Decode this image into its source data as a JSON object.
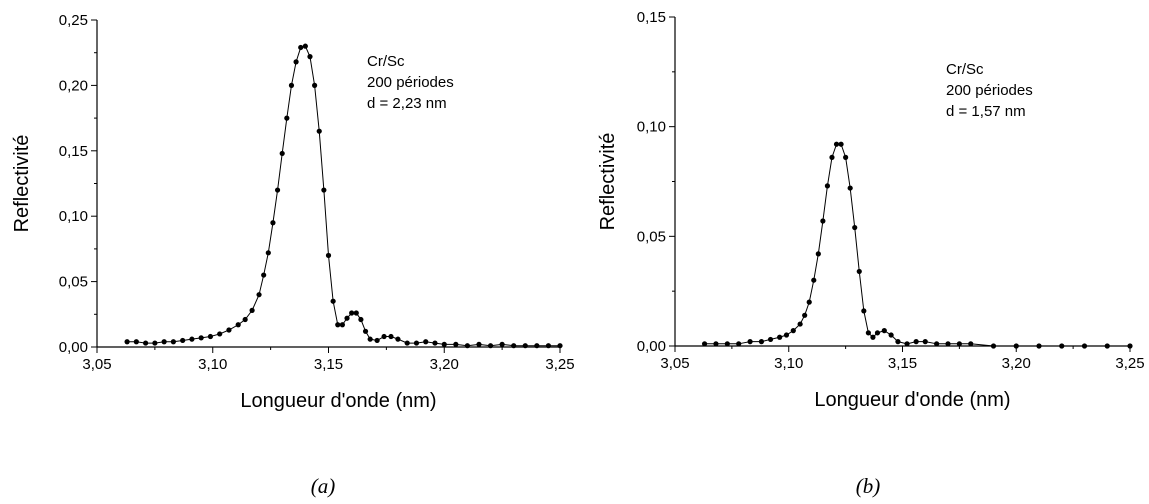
{
  "chart_data": [
    {
      "type": "scatter",
      "panel_label": "(a)",
      "xlabel": "Longueur d'onde (nm)",
      "ylabel": "Reflectivité",
      "xlim": [
        3.05,
        3.25
      ],
      "ylim": [
        0.0,
        0.25
      ],
      "xticks": [
        "3,05",
        "3,10",
        "3,15",
        "3,20",
        "3,25"
      ],
      "yticks": [
        "0,00",
        "0,05",
        "0,10",
        "0,15",
        "0,20",
        "0,25"
      ],
      "annotation": [
        "Cr/Sc",
        "200 périodes",
        "d = 2,23 nm"
      ],
      "grid": false,
      "series": [
        {
          "marker": "filled-circle-with-line",
          "color": "#000000",
          "points": [
            [
              3.063,
              0.004
            ],
            [
              3.067,
              0.004
            ],
            [
              3.071,
              0.003
            ],
            [
              3.075,
              0.003
            ],
            [
              3.079,
              0.004
            ],
            [
              3.083,
              0.004
            ],
            [
              3.087,
              0.005
            ],
            [
              3.091,
              0.006
            ],
            [
              3.095,
              0.007
            ],
            [
              3.099,
              0.008
            ],
            [
              3.103,
              0.01
            ],
            [
              3.107,
              0.013
            ],
            [
              3.111,
              0.017
            ],
            [
              3.114,
              0.021
            ],
            [
              3.117,
              0.028
            ],
            [
              3.12,
              0.04
            ],
            [
              3.122,
              0.055
            ],
            [
              3.124,
              0.072
            ],
            [
              3.126,
              0.095
            ],
            [
              3.128,
              0.12
            ],
            [
              3.13,
              0.148
            ],
            [
              3.132,
              0.175
            ],
            [
              3.134,
              0.2
            ],
            [
              3.136,
              0.218
            ],
            [
              3.138,
              0.229
            ],
            [
              3.14,
              0.23
            ],
            [
              3.142,
              0.222
            ],
            [
              3.144,
              0.2
            ],
            [
              3.146,
              0.165
            ],
            [
              3.148,
              0.12
            ],
            [
              3.15,
              0.07
            ],
            [
              3.152,
              0.035
            ],
            [
              3.154,
              0.017
            ],
            [
              3.156,
              0.017
            ],
            [
              3.158,
              0.022
            ],
            [
              3.16,
              0.026
            ],
            [
              3.162,
              0.026
            ],
            [
              3.164,
              0.021
            ],
            [
              3.166,
              0.012
            ],
            [
              3.168,
              0.006
            ],
            [
              3.171,
              0.005
            ],
            [
              3.174,
              0.008
            ],
            [
              3.177,
              0.008
            ],
            [
              3.18,
              0.006
            ],
            [
              3.184,
              0.003
            ],
            [
              3.188,
              0.003
            ],
            [
              3.192,
              0.004
            ],
            [
              3.196,
              0.003
            ],
            [
              3.2,
              0.002
            ],
            [
              3.205,
              0.002
            ],
            [
              3.21,
              0.001
            ],
            [
              3.215,
              0.002
            ],
            [
              3.22,
              0.001
            ],
            [
              3.225,
              0.002
            ],
            [
              3.23,
              0.001
            ],
            [
              3.235,
              0.001
            ],
            [
              3.24,
              0.001
            ],
            [
              3.245,
              0.001
            ],
            [
              3.25,
              0.001
            ]
          ]
        }
      ]
    },
    {
      "type": "scatter",
      "panel_label": "(b)",
      "xlabel": "Longueur d'onde (nm)",
      "ylabel": "Reflectivité",
      "xlim": [
        3.05,
        3.25
      ],
      "ylim": [
        0.0,
        0.15
      ],
      "xticks": [
        "3,05",
        "3,10",
        "3,15",
        "3,20",
        "3,25"
      ],
      "yticks": [
        "0,00",
        "0,05",
        "0,10",
        "0,15"
      ],
      "annotation": [
        "Cr/Sc",
        "200 périodes",
        "d = 1,57 nm"
      ],
      "grid": false,
      "series": [
        {
          "marker": "filled-circle-with-line",
          "color": "#000000",
          "points": [
            [
              3.063,
              0.001
            ],
            [
              3.068,
              0.001
            ],
            [
              3.073,
              0.001
            ],
            [
              3.078,
              0.001
            ],
            [
              3.083,
              0.002
            ],
            [
              3.088,
              0.002
            ],
            [
              3.092,
              0.003
            ],
            [
              3.096,
              0.004
            ],
            [
              3.099,
              0.005
            ],
            [
              3.102,
              0.007
            ],
            [
              3.105,
              0.01
            ],
            [
              3.107,
              0.014
            ],
            [
              3.109,
              0.02
            ],
            [
              3.111,
              0.03
            ],
            [
              3.113,
              0.042
            ],
            [
              3.115,
              0.057
            ],
            [
              3.117,
              0.073
            ],
            [
              3.119,
              0.086
            ],
            [
              3.121,
              0.092
            ],
            [
              3.123,
              0.092
            ],
            [
              3.125,
              0.086
            ],
            [
              3.127,
              0.072
            ],
            [
              3.129,
              0.054
            ],
            [
              3.131,
              0.034
            ],
            [
              3.133,
              0.016
            ],
            [
              3.135,
              0.006
            ],
            [
              3.137,
              0.004
            ],
            [
              3.139,
              0.006
            ],
            [
              3.142,
              0.007
            ],
            [
              3.145,
              0.005
            ],
            [
              3.148,
              0.002
            ],
            [
              3.152,
              0.001
            ],
            [
              3.156,
              0.002
            ],
            [
              3.16,
              0.002
            ],
            [
              3.165,
              0.001
            ],
            [
              3.17,
              0.001
            ],
            [
              3.175,
              0.001
            ],
            [
              3.18,
              0.001
            ],
            [
              3.19,
              0.0
            ],
            [
              3.2,
              0.0
            ],
            [
              3.21,
              0.0
            ],
            [
              3.22,
              0.0
            ],
            [
              3.23,
              0.0
            ],
            [
              3.24,
              0.0
            ],
            [
              3.25,
              0.0
            ]
          ]
        }
      ]
    }
  ]
}
